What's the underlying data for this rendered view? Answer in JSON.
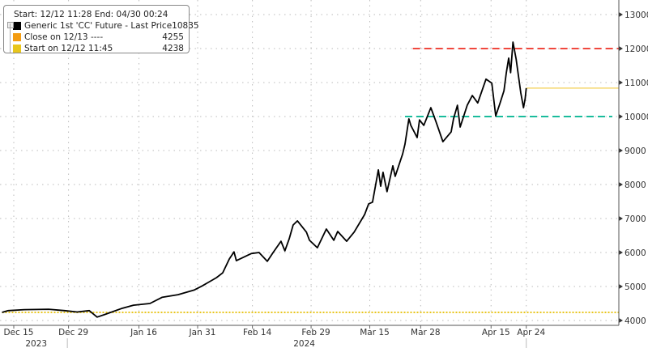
{
  "chart_data": {
    "type": "line",
    "x_unit": "days since 12/12/2023",
    "xlim": [
      0,
      158
    ],
    "ylim": [
      3750,
      13200
    ],
    "y_ticks": [
      4000,
      5000,
      6000,
      7000,
      8000,
      9000,
      10000,
      11000,
      12000,
      13000
    ],
    "y_tick_labels": [
      "4000",
      "5000",
      "6000",
      "7000",
      "8000",
      "9000",
      "10000",
      "11000",
      "12000",
      "13000"
    ],
    "x_ticks": [
      {
        "day": 3,
        "label": "Dec 15"
      },
      {
        "day": 17,
        "label": "Dec 29"
      },
      {
        "day": 35,
        "label": "Jan 16"
      },
      {
        "day": 50,
        "label": "Jan 31"
      },
      {
        "day": 64,
        "label": "Feb 14"
      },
      {
        "day": 79,
        "label": "Feb 29"
      },
      {
        "day": 94,
        "label": "Mar 15"
      },
      {
        "day": 107,
        "label": "Mar 28"
      },
      {
        "day": 125,
        "label": "Apr 15"
      },
      {
        "day": 134,
        "label": "Apr 24"
      }
    ],
    "year_labels": [
      {
        "day": 7.5,
        "label": "2023"
      },
      {
        "day": 76,
        "label": "2024"
      }
    ],
    "year_separators": [
      16.7,
      134
    ],
    "grid": true,
    "legend_position": "top-left",
    "legend": {
      "header": "Start: 12/12 11:28 End: 04/30 00:24",
      "items": [
        {
          "label": "Generic 1st 'CC' Future - Last Price",
          "value": "10835",
          "color": "#000000"
        },
        {
          "label": "Close on 12/13 ----",
          "value": "4255",
          "color": "#f39c12"
        },
        {
          "label": "Start on 12/12 11:45",
          "value": "4238",
          "color": "#e8c61c"
        }
      ]
    },
    "series": [
      {
        "name": "Generic 1st 'CC' Future - Last Price",
        "color": "#000000",
        "points": [
          [
            0,
            4238
          ],
          [
            1.6,
            4290
          ],
          [
            5.7,
            4320
          ],
          [
            11.9,
            4330
          ],
          [
            16,
            4290
          ],
          [
            19.2,
            4250
          ],
          [
            22.3,
            4290
          ],
          [
            24.3,
            4100
          ],
          [
            26.4,
            4180
          ],
          [
            30.5,
            4350
          ],
          [
            33.6,
            4450
          ],
          [
            37.8,
            4500
          ],
          [
            40.9,
            4680
          ],
          [
            45,
            4760
          ],
          [
            49.2,
            4900
          ],
          [
            51.2,
            5020
          ],
          [
            54.8,
            5260
          ],
          [
            56.4,
            5400
          ],
          [
            58.1,
            5810
          ],
          [
            59.3,
            6020
          ],
          [
            59.9,
            5760
          ],
          [
            63.7,
            5970
          ],
          [
            65.7,
            6000
          ],
          [
            67.8,
            5740
          ],
          [
            69.3,
            6000
          ],
          [
            71.3,
            6330
          ],
          [
            72.3,
            6050
          ],
          [
            73.4,
            6400
          ],
          [
            74.4,
            6810
          ],
          [
            75.5,
            6930
          ],
          [
            77.8,
            6600
          ],
          [
            78.6,
            6360
          ],
          [
            80.6,
            6140
          ],
          [
            82.9,
            6690
          ],
          [
            84.8,
            6360
          ],
          [
            85.8,
            6620
          ],
          [
            88.1,
            6330
          ],
          [
            90,
            6600
          ],
          [
            92.7,
            7120
          ],
          [
            93.7,
            7430
          ],
          [
            94.7,
            7480
          ],
          [
            96.2,
            8430
          ],
          [
            96.8,
            7950
          ],
          [
            97.4,
            8360
          ],
          [
            98.4,
            7790
          ],
          [
            99.9,
            8550
          ],
          [
            100.5,
            8240
          ],
          [
            102.4,
            8900
          ],
          [
            103,
            9190
          ],
          [
            104,
            9930
          ],
          [
            104.5,
            9740
          ],
          [
            106.1,
            9380
          ],
          [
            106.7,
            9900
          ],
          [
            107.8,
            9740
          ],
          [
            109.6,
            10260
          ],
          [
            110.9,
            9860
          ],
          [
            112.7,
            9260
          ],
          [
            114.8,
            9550
          ],
          [
            115.4,
            9930
          ],
          [
            116.4,
            10330
          ],
          [
            117.1,
            9690
          ],
          [
            118.9,
            10330
          ],
          [
            120.2,
            10620
          ],
          [
            121.6,
            10400
          ],
          [
            123.7,
            11100
          ],
          [
            125.2,
            10980
          ],
          [
            126.2,
            10020
          ],
          [
            127.3,
            10400
          ],
          [
            128.3,
            10760
          ],
          [
            128.9,
            11290
          ],
          [
            129.5,
            11720
          ],
          [
            130,
            11290
          ],
          [
            130.6,
            12190
          ],
          [
            131.4,
            11690
          ],
          [
            132.6,
            10690
          ],
          [
            133.3,
            10260
          ],
          [
            133.7,
            10520
          ],
          [
            134,
            10835
          ]
        ]
      }
    ],
    "reference_lines": [
      {
        "name": "start-level",
        "value": 4238,
        "from_day": 0,
        "to_day": 158,
        "color": "#e8c61c",
        "style": "dotted"
      },
      {
        "name": "last-price-level",
        "value": 10835,
        "from_day": 134,
        "to_day": 158,
        "color": "#f5d76e",
        "style": "solid"
      },
      {
        "name": "resistance-12000",
        "value": 12000,
        "from_day": 105,
        "to_day": 158,
        "color": "#f0483e",
        "style": "dashed"
      },
      {
        "name": "support-10000",
        "value": 10000,
        "from_day": 103,
        "to_day": 156,
        "color": "#1abc9c",
        "style": "dashed"
      }
    ]
  }
}
